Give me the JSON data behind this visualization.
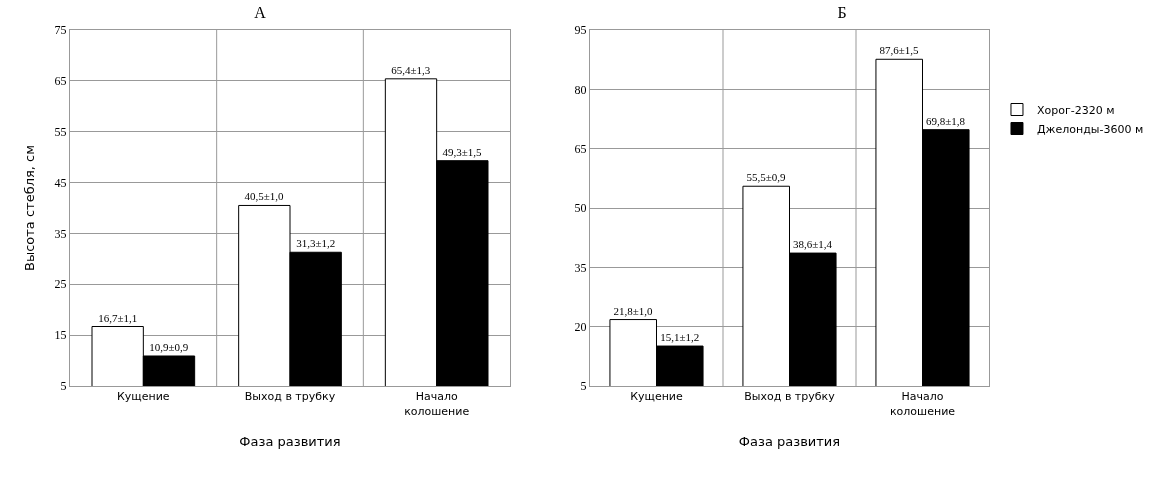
{
  "chart_data": [
    {
      "type": "bar",
      "title": "А",
      "xlabel": "Фаза развития",
      "ylabel": "Высота стебля, см",
      "categories": [
        "Кущение",
        "Выход в трубку",
        "Начало колошение"
      ],
      "series": [
        {
          "color": "#ffffff",
          "values": [
            16.7,
            40.5,
            65.4
          ],
          "value_labels": [
            "16,7±1,1",
            "40,5±1,0",
            "65,4±1,3"
          ]
        },
        {
          "color": "#000000",
          "values": [
            10.9,
            31.3,
            49.3
          ],
          "value_labels": [
            "10,9±0,9",
            "31,3±1,2",
            "49,3±1,5"
          ]
        }
      ],
      "ylim": [
        5,
        75
      ],
      "yticks": [
        5,
        15,
        25,
        35,
        45,
        55,
        65,
        75
      ],
      "grid": true,
      "legend": false
    },
    {
      "type": "bar",
      "title": "Б",
      "xlabel": "Фаза развития",
      "categories": [
        "Кущение",
        "Выход в трубку",
        "Начало колошение"
      ],
      "series": [
        {
          "name": "Хорог-2320 м",
          "color": "#ffffff",
          "values": [
            21.8,
            55.5,
            87.6
          ],
          "value_labels": [
            "21,8±1,0",
            "55,5±0,9",
            "87,6±1,5"
          ]
        },
        {
          "name": "Джелонды-3600 м",
          "color": "#000000",
          "values": [
            15.1,
            38.6,
            69.8
          ],
          "value_labels": [
            "15,1±1,2",
            "38,6±1,4",
            "69,8±1,8"
          ]
        }
      ],
      "ylim": [
        5,
        95
      ],
      "yticks": [
        5,
        20,
        35,
        50,
        65,
        80,
        95
      ],
      "grid": true,
      "legend": "right"
    }
  ]
}
